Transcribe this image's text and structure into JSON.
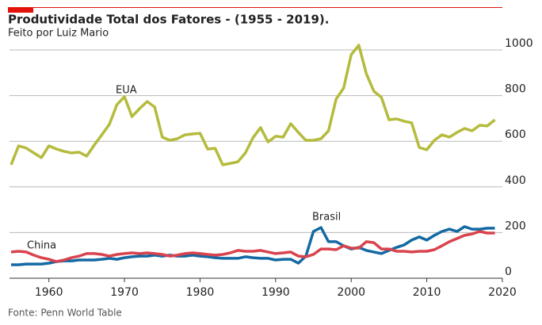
{
  "chart_data": {
    "type": "line",
    "title": "Produtividade Total dos Fatores - (1955 - 2019).",
    "subtitle": "Feito por Luiz Mario",
    "source": "Fonte: Penn World Table",
    "x": [
      1955,
      1956,
      1957,
      1958,
      1959,
      1960,
      1961,
      1962,
      1963,
      1964,
      1965,
      1966,
      1967,
      1968,
      1969,
      1970,
      1971,
      1972,
      1973,
      1974,
      1975,
      1976,
      1977,
      1978,
      1979,
      1980,
      1981,
      1982,
      1983,
      1984,
      1985,
      1986,
      1987,
      1988,
      1989,
      1990,
      1991,
      1992,
      1993,
      1994,
      1995,
      1996,
      1997,
      1998,
      1999,
      2000,
      2001,
      2002,
      2003,
      2004,
      2005,
      2006,
      2007,
      2008,
      2009,
      2010,
      2011,
      2012,
      2013,
      2014,
      2015,
      2016,
      2017,
      2018,
      2019
    ],
    "series": [
      {
        "name": "EUA",
        "color": "#b5bb3d",
        "values": [
          497,
          580,
          570,
          549,
          528,
          580,
          566,
          556,
          549,
          552,
          535,
          583,
          628,
          674,
          760,
          795,
          708,
          743,
          774,
          750,
          618,
          604,
          611,
          628,
          632,
          635,
          566,
          569,
          497,
          503,
          510,
          549,
          615,
          660,
          597,
          622,
          618,
          677,
          639,
          604,
          604,
          611,
          646,
          785,
          833,
          979,
          1021,
          896,
          819,
          792,
          694,
          698,
          688,
          681,
          573,
          563,
          604,
          628,
          618,
          639,
          656,
          646,
          670,
          667,
          694
        ]
      },
      {
        "name": "Brasil",
        "color": "#1469a3",
        "values": [
          59,
          59,
          62,
          62,
          62,
          66,
          73,
          76,
          76,
          80,
          80,
          80,
          83,
          87,
          83,
          90,
          94,
          97,
          97,
          101,
          97,
          101,
          97,
          97,
          101,
          97,
          94,
          90,
          87,
          87,
          87,
          94,
          90,
          87,
          87,
          80,
          83,
          83,
          66,
          97,
          205,
          222,
          160,
          160,
          142,
          128,
          135,
          122,
          115,
          108,
          122,
          135,
          146,
          167,
          181,
          167,
          188,
          205,
          215,
          205,
          226,
          215,
          215,
          219,
          219
        ]
      },
      {
        "name": "China",
        "color": "#d9434d",
        "values": [
          115,
          118,
          115,
          101,
          90,
          83,
          73,
          80,
          90,
          97,
          108,
          108,
          104,
          97,
          104,
          108,
          111,
          108,
          111,
          108,
          104,
          97,
          101,
          108,
          111,
          108,
          104,
          101,
          104,
          111,
          122,
          118,
          118,
          122,
          115,
          108,
          111,
          115,
          97,
          94,
          104,
          128,
          128,
          125,
          142,
          132,
          132,
          160,
          156,
          128,
          128,
          118,
          118,
          115,
          118,
          118,
          125,
          142,
          160,
          174,
          188,
          194,
          205,
          198,
          198
        ]
      }
    ],
    "xlim": [
      1955,
      2020
    ],
    "xticks": [
      1960,
      1970,
      1980,
      1990,
      2000,
      2010,
      2020
    ],
    "ylim": [
      0,
      1050
    ],
    "yticks": [
      0,
      200,
      400,
      600,
      800,
      1000
    ],
    "grid": true
  }
}
